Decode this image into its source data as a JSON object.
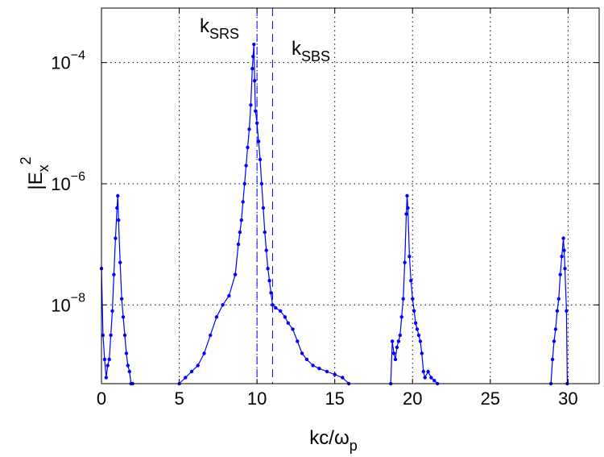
{
  "chart_data": {
    "type": "line",
    "title": "",
    "xlabel": "kc/ω",
    "xlabel_sub": "p",
    "ylabel": "|E",
    "ylabel_sub": "x",
    "ylabel_sup": "2",
    "xlim": [
      0,
      32
    ],
    "ylim_log10": [
      -9.3,
      -3.1
    ],
    "y_scale": "log",
    "grid": true,
    "x_ticks": [
      0,
      5,
      10,
      15,
      20,
      25,
      30
    ],
    "x_tick_labels": [
      "0",
      "5",
      "10",
      "15",
      "20",
      "25",
      "30"
    ],
    "y_ticks_log10": [
      -8,
      -6,
      -4
    ],
    "y_tick_base": "10",
    "y_tick_exponents": [
      "−8",
      "−6",
      "−4"
    ],
    "series_color": "#0000ff",
    "vlines": [
      {
        "x": 10.0,
        "label_main": "k",
        "label_sub": "SRS"
      },
      {
        "x": 11.0,
        "label_main": "k",
        "label_sub": "SBS"
      }
    ],
    "segments": [
      {
        "x": [
          0.0,
          0.1,
          0.2,
          0.3,
          0.4,
          0.5,
          0.6,
          0.7,
          0.8,
          0.9,
          1.0,
          1.05,
          1.1,
          1.2,
          1.3,
          1.4,
          1.5,
          1.6,
          1.7,
          1.8,
          1.9,
          2.0
        ],
        "log10y": [
          -7.4,
          -8.5,
          -8.9,
          -9.2,
          -9.0,
          -8.9,
          -8.5,
          -8.1,
          -7.5,
          -6.9,
          -6.4,
          -6.2,
          -6.6,
          -7.3,
          -7.9,
          -8.2,
          -8.5,
          -8.8,
          -9.0,
          -9.1,
          -9.3,
          -9.3
        ]
      },
      {
        "x": [
          5.0,
          5.4,
          5.8,
          6.2,
          6.6,
          7.0,
          7.4,
          7.8,
          8.2,
          8.6,
          8.8,
          8.9,
          9.0,
          9.1,
          9.2,
          9.3,
          9.4,
          9.5,
          9.6,
          9.7,
          9.75,
          9.8,
          9.85,
          9.9,
          10.0,
          10.1,
          10.2,
          10.3,
          10.4,
          10.5,
          10.6,
          10.7,
          10.8,
          10.9,
          11.0,
          11.2,
          11.5,
          11.8,
          12.0,
          12.3,
          12.6,
          12.9,
          13.2,
          13.6,
          14.0,
          14.5,
          15.0,
          15.5,
          15.9
        ],
        "log10y": [
          -9.3,
          -9.2,
          -9.1,
          -9.0,
          -8.8,
          -8.5,
          -8.2,
          -8.0,
          -7.85,
          -7.5,
          -7.0,
          -6.8,
          -6.6,
          -6.3,
          -6.0,
          -5.7,
          -5.4,
          -5.1,
          -4.7,
          -4.1,
          -3.9,
          -3.7,
          -4.3,
          -4.8,
          -5.0,
          -5.3,
          -5.6,
          -6.0,
          -6.4,
          -6.8,
          -7.1,
          -7.4,
          -7.6,
          -7.8,
          -8.0,
          -8.05,
          -8.1,
          -8.2,
          -8.3,
          -8.4,
          -8.6,
          -8.8,
          -8.9,
          -9.0,
          -9.05,
          -9.1,
          -9.15,
          -9.2,
          -9.3
        ]
      },
      {
        "x": [
          18.6,
          18.7,
          18.8,
          18.9,
          19.0,
          19.1,
          19.2,
          19.3,
          19.4,
          19.5,
          19.6,
          19.65,
          19.7,
          19.8,
          19.9,
          20.0,
          20.1,
          20.2,
          20.3,
          20.4,
          20.5,
          20.6,
          20.7,
          20.8,
          21.0,
          21.2,
          21.4,
          21.6
        ],
        "log10y": [
          -9.3,
          -8.6,
          -8.8,
          -8.9,
          -8.7,
          -8.6,
          -8.5,
          -8.2,
          -7.9,
          -7.3,
          -6.5,
          -6.2,
          -6.4,
          -7.2,
          -7.6,
          -7.9,
          -8.1,
          -8.3,
          -8.4,
          -8.5,
          -8.6,
          -8.8,
          -9.1,
          -9.2,
          -9.1,
          -9.2,
          -9.25,
          -9.3
        ]
      },
      {
        "x": [
          28.9,
          29.0,
          29.1,
          29.2,
          29.3,
          29.4,
          29.5,
          29.6,
          29.7,
          29.75,
          29.8,
          29.9,
          29.95
        ],
        "log10y": [
          -9.3,
          -8.9,
          -8.6,
          -8.4,
          -8.1,
          -7.9,
          -7.5,
          -7.2,
          -6.9,
          -7.1,
          -7.4,
          -8.1,
          -9.3
        ]
      }
    ]
  }
}
